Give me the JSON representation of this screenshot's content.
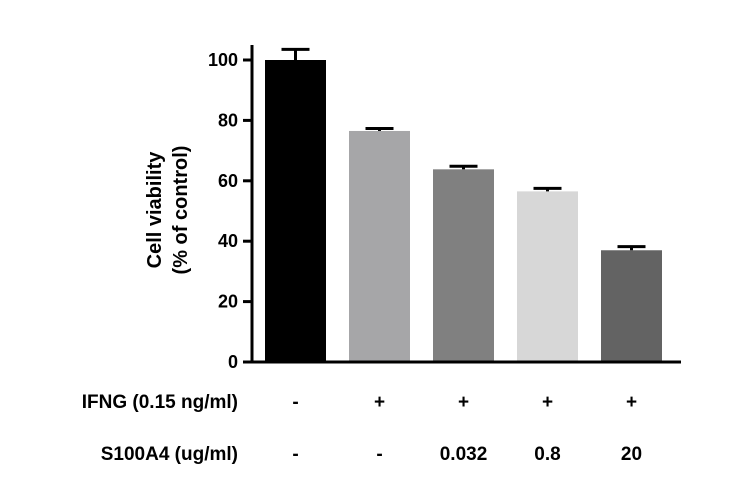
{
  "chart_data": {
    "type": "bar",
    "ylabel_lines": [
      "Cell viability",
      "(% of control)"
    ],
    "ylim": [
      0,
      105
    ],
    "yticks": [
      "0",
      "20",
      "40",
      "60",
      "80",
      "100"
    ],
    "grid": false,
    "values": [
      100,
      76.5,
      63.8,
      56.5,
      37.0
    ],
    "errors": [
      3.5,
      0.8,
      1.0,
      1.0,
      1.2
    ],
    "colors": [
      "#000000",
      "#a6a6a8",
      "#808080",
      "#d7d7d7",
      "#636363"
    ],
    "condition_rows": [
      {
        "label": "IFNG (0.15 ng/ml)",
        "cells": [
          "-",
          "+",
          "+",
          "+",
          "+"
        ]
      },
      {
        "label": "S100A4 (ug/ml)",
        "cells": [
          "-",
          "-",
          "0.032",
          "0.8",
          "20"
        ]
      }
    ]
  }
}
